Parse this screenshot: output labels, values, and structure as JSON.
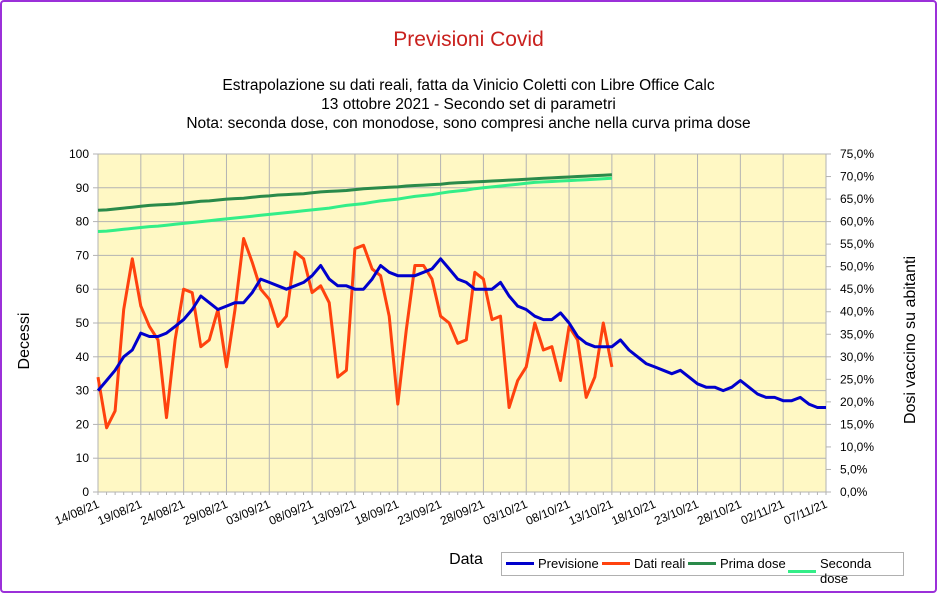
{
  "title": "Previsioni Covid",
  "subtitle": [
    "Estrapolazione su dati reali, fatta da Vinicio Coletti con Libre Office Calc",
    "13 ottobre 2021 - Secondo set di parametri",
    "Nota: seconda dose, con monodose, sono compresi anche nella curva prima dose"
  ],
  "colors": {
    "border": "#9b30d9",
    "plot_bg": "#fff8c4",
    "title": "#c9211e",
    "previsione": "#0000cc",
    "dati_reali": "#ff420e",
    "prima_dose": "#2a8a4a",
    "seconda_dose": "#33ee88"
  },
  "chart_data": {
    "type": "line",
    "title": "Previsioni Covid",
    "xlabel": "Data",
    "ylabel": "Decessi",
    "y2label": "Dosi vaccino su abitanti",
    "ylim": [
      0,
      100
    ],
    "y2lim": [
      0,
      75
    ],
    "y_ticks": [
      "0",
      "10",
      "20",
      "30",
      "40",
      "50",
      "60",
      "70",
      "80",
      "90",
      "100"
    ],
    "y2_ticks": [
      "0,0%",
      "5,0%",
      "10,0%",
      "15,0%",
      "20,0%",
      "25,0%",
      "30,0%",
      "35,0%",
      "40,0%",
      "45,0%",
      "50,0%",
      "55,0%",
      "60,0%",
      "65,0%",
      "70,0%",
      "75,0%"
    ],
    "x_ticks": [
      "14/08/21",
      "19/08/21",
      "24/08/21",
      "29/08/21",
      "03/09/21",
      "08/09/21",
      "13/09/21",
      "18/09/21",
      "23/09/21",
      "28/09/21",
      "03/10/21",
      "08/10/21",
      "13/10/21",
      "18/10/21",
      "23/10/21",
      "28/10/21",
      "02/11/21",
      "07/11/21"
    ],
    "x_start": "14/08/21",
    "grid": true,
    "legend_position": "bottom-right",
    "series": [
      {
        "name": "Previsione",
        "axis": "left",
        "values": [
          30,
          33,
          36,
          40,
          42,
          47,
          46,
          46,
          47,
          49,
          51,
          54,
          58,
          56,
          54,
          55,
          56,
          56,
          59,
          63,
          62,
          61,
          60,
          61,
          62,
          64,
          67,
          63,
          61,
          61,
          60,
          60,
          63,
          67,
          65,
          64,
          64,
          64,
          65,
          66,
          69,
          66,
          63,
          62,
          60,
          60,
          60,
          62,
          58,
          55,
          54,
          52,
          51,
          51,
          53,
          50,
          46,
          44,
          43,
          43,
          43,
          45,
          42,
          40,
          38,
          37,
          36,
          35,
          36,
          34,
          32,
          31,
          31,
          30,
          31,
          33,
          31,
          29,
          28,
          28,
          27,
          27,
          28,
          26,
          25,
          25
        ]
      },
      {
        "name": "Dati reali",
        "axis": "left",
        "values": [
          34,
          19,
          24,
          54,
          69,
          55,
          49,
          45,
          22,
          45,
          60,
          59,
          43,
          45,
          54,
          37,
          54,
          75,
          68,
          60,
          57,
          49,
          52,
          71,
          69,
          59,
          61,
          56,
          34,
          36,
          72,
          73,
          66,
          64,
          52,
          26,
          48,
          67,
          67,
          63,
          52,
          50,
          44,
          45,
          65,
          63,
          51,
          52,
          25,
          33,
          37,
          50,
          42,
          43,
          33,
          49,
          45,
          28,
          34,
          50,
          37
        ]
      },
      {
        "name": "Prima dose",
        "axis": "right",
        "values": [
          62.5,
          62.6,
          62.8,
          63.0,
          63.2,
          63.4,
          63.6,
          63.7,
          63.8,
          63.9,
          64.1,
          64.3,
          64.5,
          64.6,
          64.8,
          65.0,
          65.1,
          65.2,
          65.4,
          65.6,
          65.7,
          65.9,
          66.0,
          66.1,
          66.2,
          66.4,
          66.6,
          66.7,
          66.8,
          66.9,
          67.1,
          67.3,
          67.4,
          67.5,
          67.6,
          67.7,
          67.9,
          68.0,
          68.1,
          68.2,
          68.3,
          68.5,
          68.6,
          68.7,
          68.8,
          68.9,
          69.0,
          69.1,
          69.2,
          69.3,
          69.4,
          69.5,
          69.6,
          69.7,
          69.8,
          69.9,
          70.0,
          70.1,
          70.2,
          70.3,
          70.4
        ]
      },
      {
        "name": "Seconda dose",
        "axis": "right",
        "values": [
          57.8,
          57.9,
          58.1,
          58.3,
          58.5,
          58.7,
          58.9,
          59.0,
          59.2,
          59.4,
          59.6,
          59.8,
          60.0,
          60.2,
          60.4,
          60.6,
          60.8,
          61.0,
          61.2,
          61.4,
          61.6,
          61.8,
          62.0,
          62.2,
          62.4,
          62.6,
          62.8,
          63.0,
          63.3,
          63.6,
          63.8,
          64.0,
          64.3,
          64.6,
          64.8,
          65.0,
          65.3,
          65.6,
          65.8,
          66.0,
          66.3,
          66.6,
          66.8,
          67.0,
          67.3,
          67.5,
          67.7,
          67.9,
          68.1,
          68.3,
          68.5,
          68.7,
          68.8,
          68.9,
          69.0,
          69.1,
          69.2,
          69.3,
          69.4,
          69.5,
          69.6
        ]
      }
    ]
  }
}
